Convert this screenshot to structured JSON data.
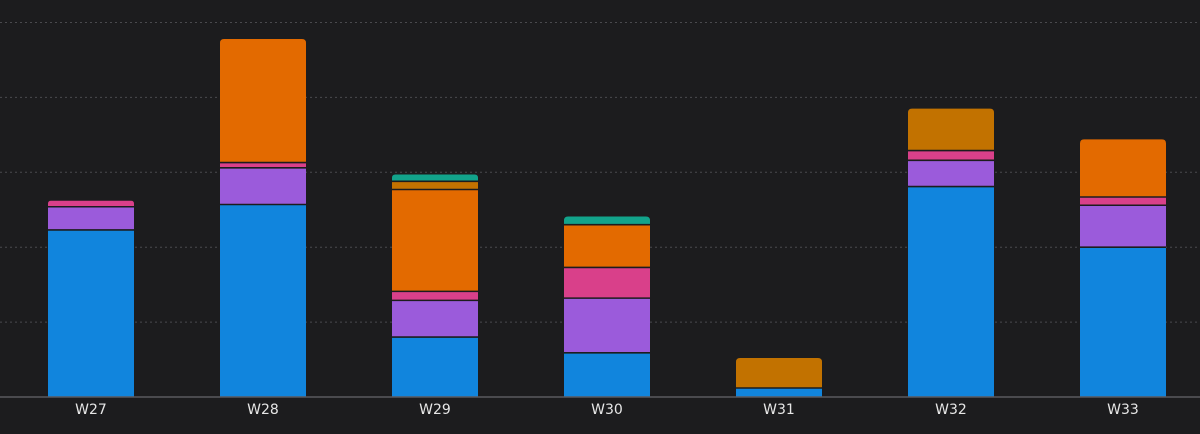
{
  "chart_data": {
    "type": "stacked-bar",
    "categories": [
      "W27",
      "W28",
      "W29",
      "W30",
      "W31",
      "W32",
      "W33"
    ],
    "series": [
      {
        "color": "#1185dd",
        "values": [
          22.3,
          25.7,
          8,
          5.9,
          1.2,
          28.1,
          20
        ]
      },
      {
        "color": "#9b5bdb",
        "values": [
          3.1,
          4.9,
          4.9,
          7.3,
          null,
          3.5,
          5.6
        ]
      },
      {
        "color": "#d9408a",
        "values": [
          0.8,
          0.7,
          1.2,
          4.1,
          null,
          1.3,
          1.1
        ]
      },
      {
        "color": "#e36a00",
        "values": [
          null,
          16.5,
          13.6,
          5.7,
          null,
          null,
          7.7
        ]
      },
      {
        "color": "#c27200",
        "values": [
          null,
          null,
          1.1,
          null,
          4,
          5.6,
          null
        ]
      },
      {
        "color": "#12a38b",
        "values": [
          null,
          null,
          0.9,
          1.1,
          null,
          null,
          null
        ]
      }
    ],
    "ylim": [
      0,
      53
    ],
    "yticks": [
      10,
      20,
      30,
      40,
      50
    ],
    "grid": true
  }
}
